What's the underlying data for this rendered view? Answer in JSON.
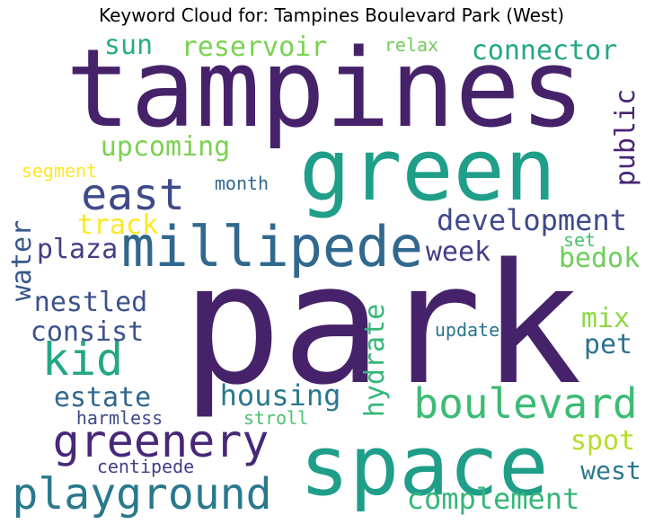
{
  "chart_data": {
    "type": "wordcloud",
    "title": "Keyword Cloud for: Tampines Boulevard Park (West)",
    "words": [
      {
        "text": "park",
        "color": "#46226a"
      },
      {
        "text": "tampines",
        "color": "#46226a"
      },
      {
        "text": "green",
        "color": "#1f9e89"
      },
      {
        "text": "space",
        "color": "#1f9e89"
      },
      {
        "text": "millipede",
        "color": "#31688e"
      },
      {
        "text": "boulevard",
        "color": "#3cbb75"
      },
      {
        "text": "playground",
        "color": "#2a788e"
      },
      {
        "text": "greenery",
        "color": "#482878"
      },
      {
        "text": "east",
        "color": "#3e4a89"
      },
      {
        "text": "kid",
        "color": "#22a884"
      },
      {
        "text": "complement",
        "color": "#35b779"
      },
      {
        "text": "development",
        "color": "#3e4989"
      },
      {
        "text": "housing",
        "color": "#2a788e"
      },
      {
        "text": "reservoir",
        "color": "#7ad151"
      },
      {
        "text": "connector",
        "color": "#22a884"
      },
      {
        "text": "upcoming",
        "color": "#7ad151"
      },
      {
        "text": "hydrate",
        "color": "#35b779"
      },
      {
        "text": "estate",
        "color": "#31688e"
      },
      {
        "text": "consist",
        "color": "#3b528b"
      },
      {
        "text": "nestled",
        "color": "#3b528b"
      },
      {
        "text": "plaza",
        "color": "#433e85"
      },
      {
        "text": "week",
        "color": "#433e85"
      },
      {
        "text": "bedok",
        "color": "#6ece58"
      },
      {
        "text": "public",
        "color": "#482475"
      },
      {
        "text": "water",
        "color": "#38588c"
      },
      {
        "text": "track",
        "color": "#fde725"
      },
      {
        "text": "sun",
        "color": "#29af7f"
      },
      {
        "text": "spot",
        "color": "#b5de2b"
      },
      {
        "text": "west",
        "color": "#2a788e"
      },
      {
        "text": "mix",
        "color": "#8fd744"
      },
      {
        "text": "pet",
        "color": "#2c728e"
      },
      {
        "text": "segment",
        "color": "#fde725"
      },
      {
        "text": "month",
        "color": "#31688e"
      },
      {
        "text": "relax",
        "color": "#6ece58"
      },
      {
        "text": "update",
        "color": "#2c728e"
      },
      {
        "text": "set",
        "color": "#4ac16d"
      },
      {
        "text": "harmless",
        "color": "#3e4a89"
      },
      {
        "text": "stroll",
        "color": "#4ac16d"
      },
      {
        "text": "centipede",
        "color": "#433e85"
      }
    ]
  }
}
